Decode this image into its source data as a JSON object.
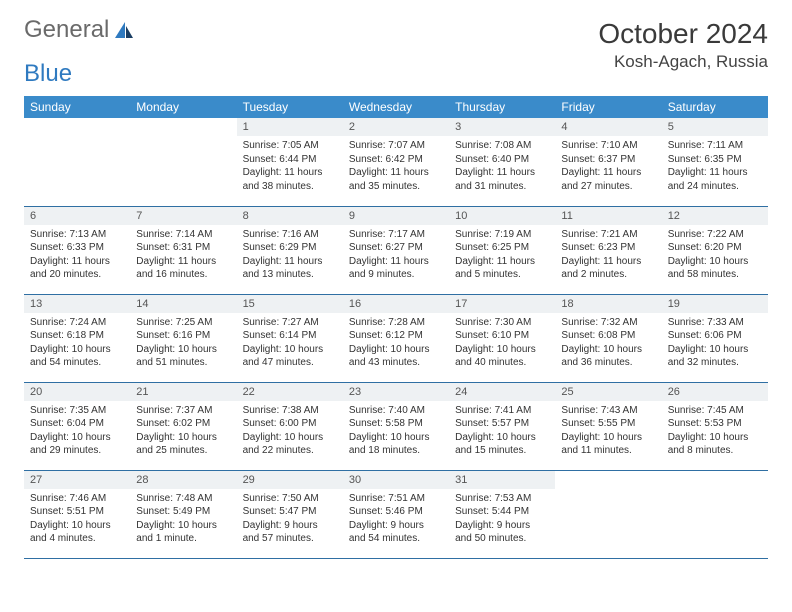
{
  "logo": {
    "text1": "General",
    "text2": "Blue"
  },
  "title": "October 2024",
  "location": "Kosh-Agach, Russia",
  "colors": {
    "header_bg": "#3a8bca",
    "header_text": "#ffffff",
    "daynum_bg": "#eef1f3",
    "row_border": "#2f6fa3",
    "logo_gray": "#6a6a6a",
    "logo_blue": "#2f7ac0"
  },
  "weekdays": [
    "Sunday",
    "Monday",
    "Tuesday",
    "Wednesday",
    "Thursday",
    "Friday",
    "Saturday"
  ],
  "grid": [
    [
      null,
      null,
      {
        "n": "1",
        "sr": "7:05 AM",
        "ss": "6:44 PM",
        "dl": "11 hours and 38 minutes."
      },
      {
        "n": "2",
        "sr": "7:07 AM",
        "ss": "6:42 PM",
        "dl": "11 hours and 35 minutes."
      },
      {
        "n": "3",
        "sr": "7:08 AM",
        "ss": "6:40 PM",
        "dl": "11 hours and 31 minutes."
      },
      {
        "n": "4",
        "sr": "7:10 AM",
        "ss": "6:37 PM",
        "dl": "11 hours and 27 minutes."
      },
      {
        "n": "5",
        "sr": "7:11 AM",
        "ss": "6:35 PM",
        "dl": "11 hours and 24 minutes."
      }
    ],
    [
      {
        "n": "6",
        "sr": "7:13 AM",
        "ss": "6:33 PM",
        "dl": "11 hours and 20 minutes."
      },
      {
        "n": "7",
        "sr": "7:14 AM",
        "ss": "6:31 PM",
        "dl": "11 hours and 16 minutes."
      },
      {
        "n": "8",
        "sr": "7:16 AM",
        "ss": "6:29 PM",
        "dl": "11 hours and 13 minutes."
      },
      {
        "n": "9",
        "sr": "7:17 AM",
        "ss": "6:27 PM",
        "dl": "11 hours and 9 minutes."
      },
      {
        "n": "10",
        "sr": "7:19 AM",
        "ss": "6:25 PM",
        "dl": "11 hours and 5 minutes."
      },
      {
        "n": "11",
        "sr": "7:21 AM",
        "ss": "6:23 PM",
        "dl": "11 hours and 2 minutes."
      },
      {
        "n": "12",
        "sr": "7:22 AM",
        "ss": "6:20 PM",
        "dl": "10 hours and 58 minutes."
      }
    ],
    [
      {
        "n": "13",
        "sr": "7:24 AM",
        "ss": "6:18 PM",
        "dl": "10 hours and 54 minutes."
      },
      {
        "n": "14",
        "sr": "7:25 AM",
        "ss": "6:16 PM",
        "dl": "10 hours and 51 minutes."
      },
      {
        "n": "15",
        "sr": "7:27 AM",
        "ss": "6:14 PM",
        "dl": "10 hours and 47 minutes."
      },
      {
        "n": "16",
        "sr": "7:28 AM",
        "ss": "6:12 PM",
        "dl": "10 hours and 43 minutes."
      },
      {
        "n": "17",
        "sr": "7:30 AM",
        "ss": "6:10 PM",
        "dl": "10 hours and 40 minutes."
      },
      {
        "n": "18",
        "sr": "7:32 AM",
        "ss": "6:08 PM",
        "dl": "10 hours and 36 minutes."
      },
      {
        "n": "19",
        "sr": "7:33 AM",
        "ss": "6:06 PM",
        "dl": "10 hours and 32 minutes."
      }
    ],
    [
      {
        "n": "20",
        "sr": "7:35 AM",
        "ss": "6:04 PM",
        "dl": "10 hours and 29 minutes."
      },
      {
        "n": "21",
        "sr": "7:37 AM",
        "ss": "6:02 PM",
        "dl": "10 hours and 25 minutes."
      },
      {
        "n": "22",
        "sr": "7:38 AM",
        "ss": "6:00 PM",
        "dl": "10 hours and 22 minutes."
      },
      {
        "n": "23",
        "sr": "7:40 AM",
        "ss": "5:58 PM",
        "dl": "10 hours and 18 minutes."
      },
      {
        "n": "24",
        "sr": "7:41 AM",
        "ss": "5:57 PM",
        "dl": "10 hours and 15 minutes."
      },
      {
        "n": "25",
        "sr": "7:43 AM",
        "ss": "5:55 PM",
        "dl": "10 hours and 11 minutes."
      },
      {
        "n": "26",
        "sr": "7:45 AM",
        "ss": "5:53 PM",
        "dl": "10 hours and 8 minutes."
      }
    ],
    [
      {
        "n": "27",
        "sr": "7:46 AM",
        "ss": "5:51 PM",
        "dl": "10 hours and 4 minutes."
      },
      {
        "n": "28",
        "sr": "7:48 AM",
        "ss": "5:49 PM",
        "dl": "10 hours and 1 minute."
      },
      {
        "n": "29",
        "sr": "7:50 AM",
        "ss": "5:47 PM",
        "dl": "9 hours and 57 minutes."
      },
      {
        "n": "30",
        "sr": "7:51 AM",
        "ss": "5:46 PM",
        "dl": "9 hours and 54 minutes."
      },
      {
        "n": "31",
        "sr": "7:53 AM",
        "ss": "5:44 PM",
        "dl": "9 hours and 50 minutes."
      },
      null,
      null
    ]
  ],
  "labels": {
    "sunrise": "Sunrise:",
    "sunset": "Sunset:",
    "daylight": "Daylight:"
  }
}
